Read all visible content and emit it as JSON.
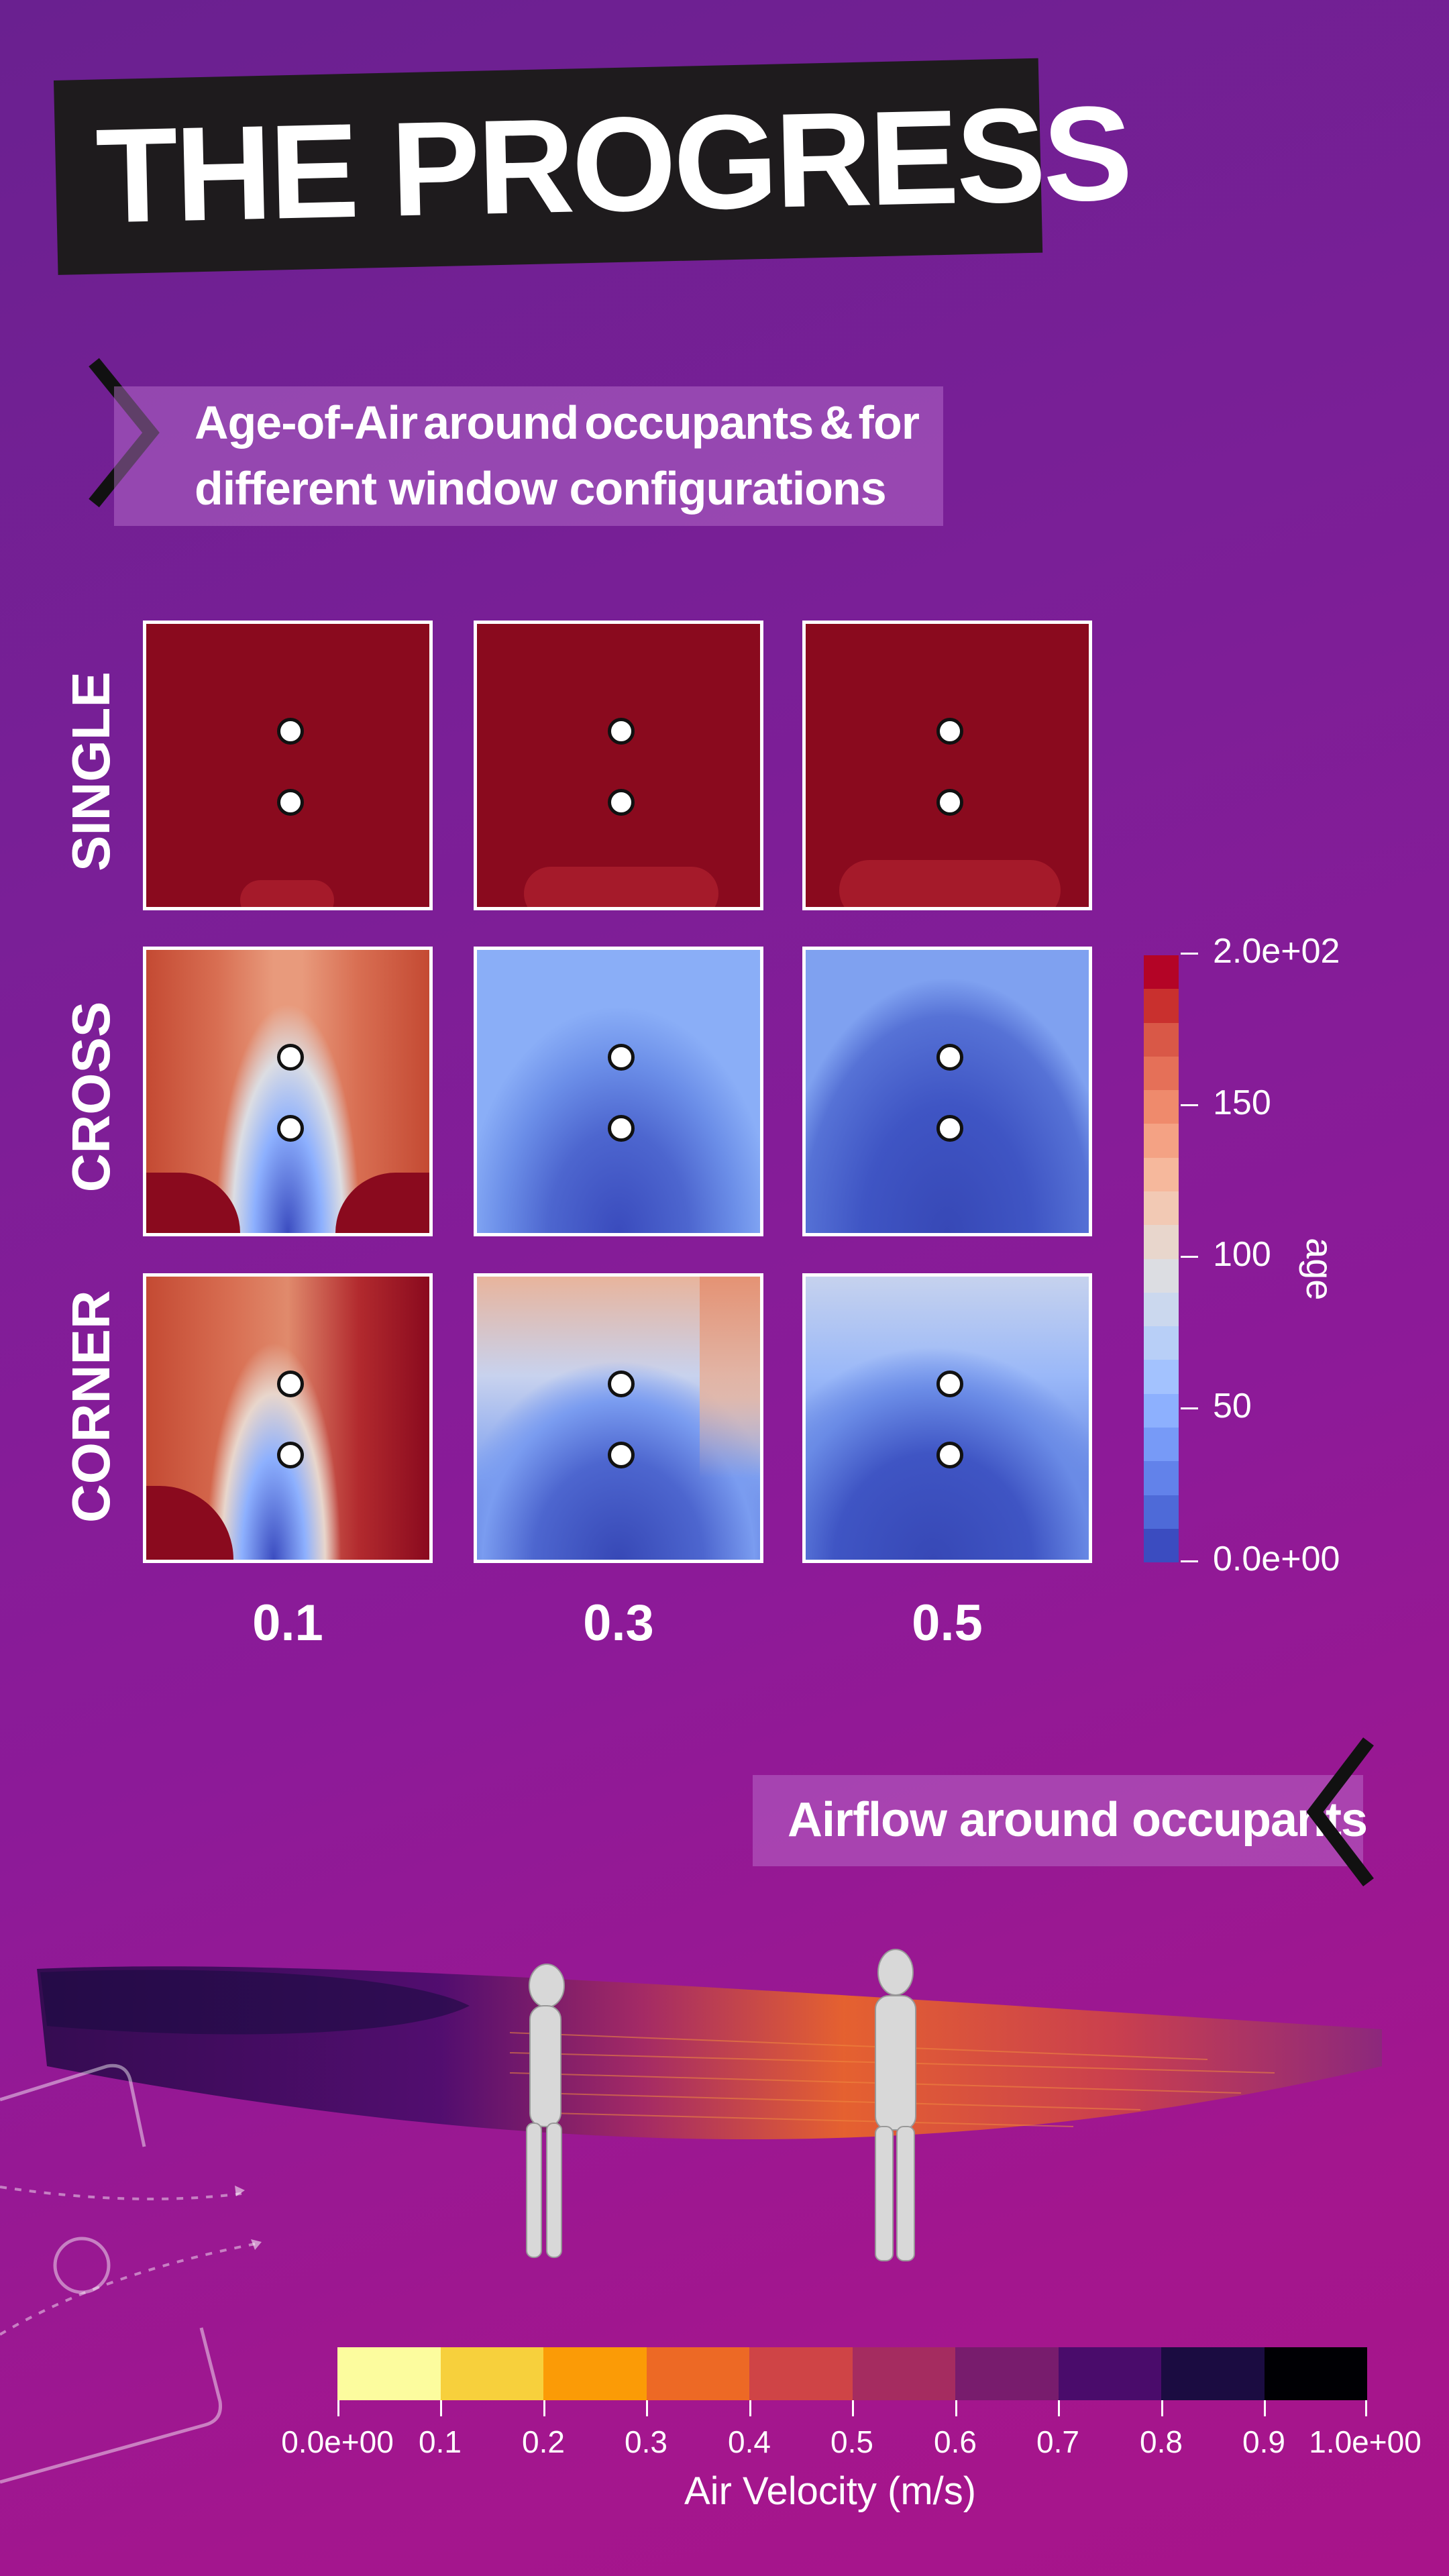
{
  "title": "THE PROGRESS",
  "section1": {
    "line1_words": [
      "Age-of-Air",
      "around",
      "occupants",
      "&",
      "for"
    ],
    "line2": "different window configurations"
  },
  "rows": [
    "SINGLE",
    "CROSS",
    "CORNER"
  ],
  "columns": [
    "0.1",
    "0.3",
    "0.5"
  ],
  "age_colorbar": {
    "title": "age",
    "ticks": [
      "2.0e+02",
      "150",
      "100",
      "50",
      "0.0e+00"
    ],
    "colors": [
      "#b40426",
      "#c9302e",
      "#d95847",
      "#e57058",
      "#ef8a6c",
      "#f4a284",
      "#f6b89c",
      "#f2c9b4",
      "#e8d6cc",
      "#dcdde2",
      "#cbd8ee",
      "#b8cff7",
      "#a3c2fe",
      "#8db0fe",
      "#779af7",
      "#6282ea",
      "#4e6ad8",
      "#3b4cc0"
    ]
  },
  "section2": {
    "label": "Airflow around occupants"
  },
  "velocity_colorbar": {
    "title": "Air Velocity (m/s)",
    "ticks": [
      "0.0e+00",
      "0.1",
      "0.2",
      "0.3",
      "0.4",
      "0.5",
      "0.6",
      "0.7",
      "0.8",
      "0.9",
      "1.0e+00"
    ],
    "colors": [
      "#fcfc9e",
      "#f7d03c",
      "#fb9b06",
      "#ed6925",
      "#cf4446",
      "#a52c60",
      "#781c6d",
      "#4a0c6b",
      "#1b0c41",
      "#000004"
    ]
  }
}
